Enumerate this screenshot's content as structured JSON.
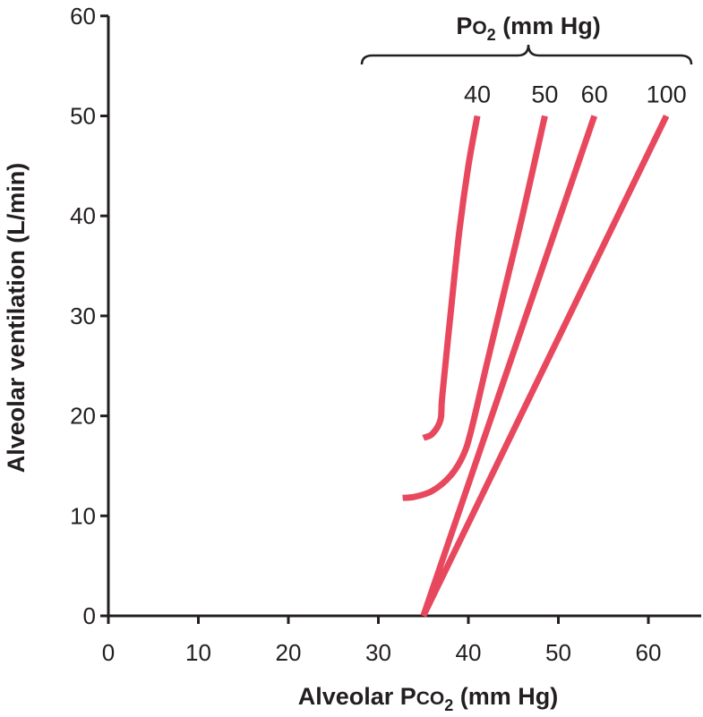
{
  "chart_data": {
    "type": "line",
    "xlabel": {
      "prefix": "Alveolar P",
      "small_caps": "CO",
      "subscript": "2",
      "suffix": " (mm Hg)"
    },
    "ylabel": "Alveolar ventilation (L/min)",
    "legend_title": {
      "prefix": "P",
      "small": "O",
      "subscript": "2",
      "suffix": " (mm Hg)"
    },
    "xlim": [
      0,
      65
    ],
    "ylim": [
      0,
      60
    ],
    "x_ticks": [
      0,
      10,
      20,
      30,
      40,
      50,
      60
    ],
    "y_ticks": [
      0,
      10,
      20,
      30,
      40,
      50,
      60
    ],
    "grid": false,
    "line_color": "#e8485e",
    "axis_color": "#231f20",
    "series": [
      {
        "name": "40",
        "points": [
          [
            35,
            17.8
          ],
          [
            36,
            18.2
          ],
          [
            36.9,
            19.6
          ],
          [
            37.1,
            22
          ],
          [
            38,
            30
          ],
          [
            39,
            38.5
          ],
          [
            40,
            45
          ],
          [
            41,
            50
          ]
        ]
      },
      {
        "name": "50",
        "points": [
          [
            32.7,
            11.8
          ],
          [
            34,
            11.9
          ],
          [
            36,
            12.5
          ],
          [
            38,
            14
          ],
          [
            39.4,
            16
          ],
          [
            40.3,
            18.5
          ],
          [
            42,
            25
          ],
          [
            44,
            32.5
          ],
          [
            46,
            40
          ],
          [
            48.5,
            50
          ]
        ]
      },
      {
        "name": "60",
        "points": [
          [
            35,
            0
          ],
          [
            54,
            50
          ]
        ]
      },
      {
        "name": "100",
        "points": [
          [
            35,
            0
          ],
          [
            62,
            50
          ]
        ]
      }
    ]
  }
}
